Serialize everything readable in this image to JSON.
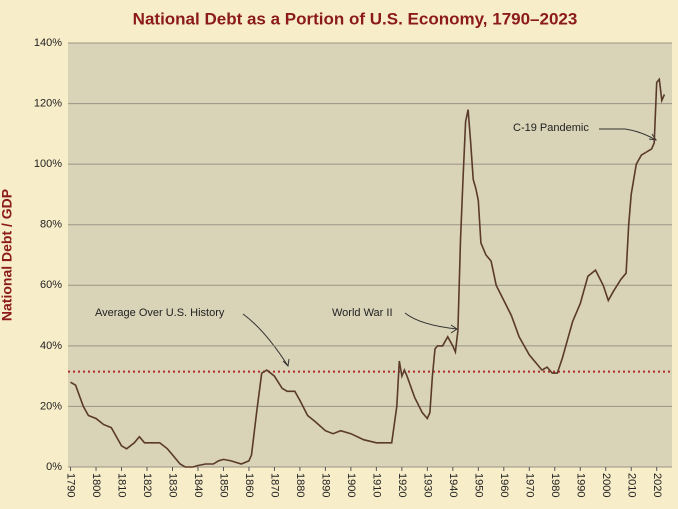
{
  "chart_data": {
    "type": "line",
    "title": "National Debt as a Portion of U.S. Economy, 1790–2023",
    "y_label": "National Debt / GDP",
    "xlim": [
      1789,
      2026
    ],
    "xticks": [
      1790,
      1800,
      1810,
      1820,
      1830,
      1840,
      1850,
      1860,
      1870,
      1880,
      1890,
      1900,
      1910,
      1920,
      1930,
      1940,
      1950,
      1960,
      1970,
      1980,
      1990,
      2000,
      2010,
      2020
    ],
    "ylim": [
      0,
      140
    ],
    "yticks": [
      {
        "value": 0,
        "label": "0%"
      },
      {
        "value": 20,
        "label": "20%"
      },
      {
        "value": 40,
        "label": "40%"
      },
      {
        "value": 60,
        "label": "60%"
      },
      {
        "value": 80,
        "label": "80%"
      },
      {
        "value": 100,
        "label": "100%"
      },
      {
        "value": 120,
        "label": "120%"
      },
      {
        "value": 140,
        "label": "140%"
      }
    ],
    "grid": true,
    "average": {
      "value": 31.5,
      "color": "#b22a2a"
    },
    "annotations": [
      "Average Over U.S. History",
      "World War II",
      "C-19 Pandemic"
    ],
    "series": [
      {
        "color": "#5a3a2a",
        "x": [
          1790,
          1792,
          1795,
          1797,
          1800,
          1803,
          1806,
          1810,
          1812,
          1815,
          1817,
          1819,
          1822,
          1825,
          1828,
          1830,
          1833,
          1835,
          1838,
          1840,
          1843,
          1846,
          1848,
          1850,
          1853,
          1857,
          1860,
          1861,
          1863,
          1865,
          1867,
          1870,
          1873,
          1875,
          1878,
          1880,
          1883,
          1886,
          1890,
          1893,
          1896,
          1900,
          1905,
          1910,
          1913,
          1916,
          1918,
          1919,
          1920,
          1921,
          1922,
          1925,
          1928,
          1930,
          1931,
          1932,
          1933,
          1934,
          1936,
          1938,
          1940,
          1941,
          1942,
          1943,
          1944,
          1945,
          1946,
          1947,
          1948,
          1949,
          1950,
          1951,
          1953,
          1955,
          1957,
          1960,
          1963,
          1966,
          1970,
          1973,
          1975,
          1977,
          1979,
          1981,
          1983,
          1985,
          1987,
          1990,
          1993,
          1996,
          1999,
          2001,
          2003,
          2006,
          2008,
          2009,
          2010,
          2012,
          2014,
          2016,
          2018,
          2019,
          2020,
          2021,
          2022,
          2023
        ],
        "values": [
          28,
          27,
          20,
          17,
          16,
          14,
          13,
          7,
          6,
          8,
          10,
          8,
          8,
          8,
          6,
          4,
          1,
          0,
          0,
          0.5,
          1,
          1,
          2,
          2.5,
          2,
          1,
          2,
          4,
          18,
          31,
          32,
          30,
          26,
          25,
          25,
          22,
          17,
          15,
          12,
          11,
          12,
          11,
          9,
          8,
          8,
          8,
          20,
          35,
          30,
          32,
          30,
          23,
          18,
          16,
          18,
          30,
          39,
          40,
          40,
          43,
          40,
          38,
          45,
          75,
          95,
          114,
          118,
          107,
          95,
          92,
          88,
          74,
          70,
          68,
          60,
          55,
          50,
          43,
          37,
          34,
          32,
          33,
          31,
          31,
          36,
          42,
          48,
          54,
          63,
          65,
          60,
          55,
          58,
          62,
          64,
          80,
          90,
          100,
          103,
          104,
          105,
          107,
          127,
          128,
          121,
          123
        ]
      }
    ]
  }
}
